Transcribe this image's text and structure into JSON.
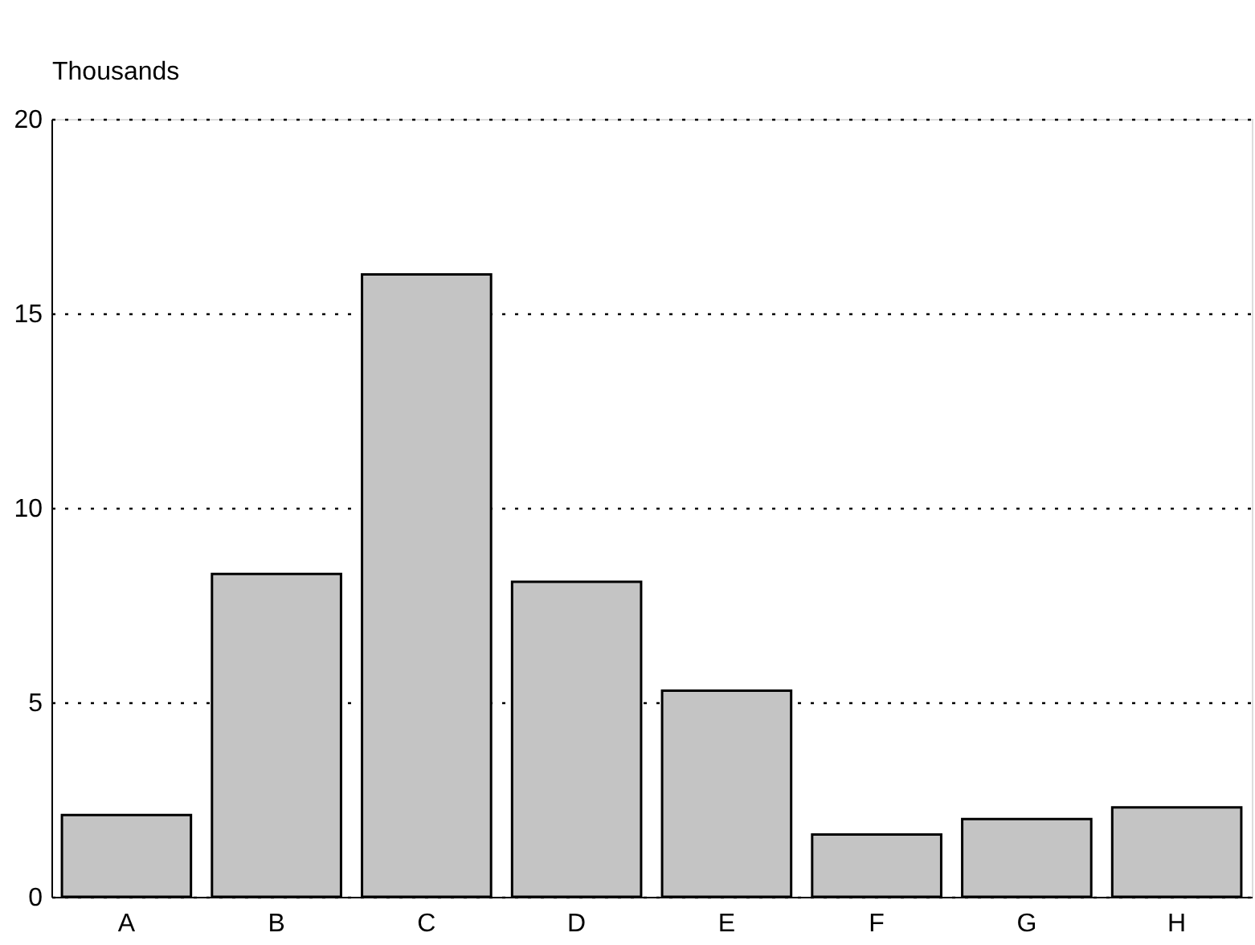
{
  "chart_data": {
    "type": "bar",
    "ylabel": "Thousands",
    "categories": [
      "A",
      "B",
      "C",
      "D",
      "E",
      "F",
      "G",
      "H"
    ],
    "values": [
      2.1,
      8.3,
      16.0,
      8.1,
      5.3,
      1.6,
      2.0,
      2.3
    ],
    "color": "#c4c4c4",
    "ylim": [
      0,
      20
    ],
    "yticks": [
      0,
      5,
      10,
      15,
      20
    ],
    "grid": "y"
  }
}
